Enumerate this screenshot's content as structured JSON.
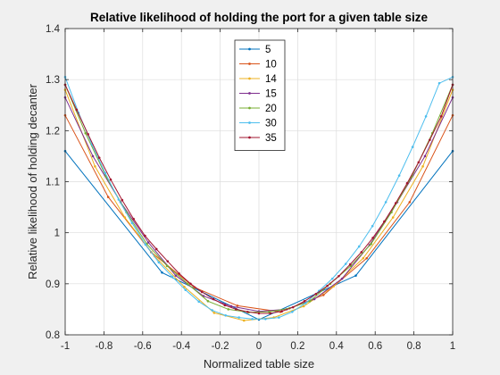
{
  "chart_data": {
    "type": "line",
    "title": "Relative likelihood of holding the port for a given table size",
    "xlabel": "Normalized table size",
    "ylabel": "Relative likelihood of holding decanter",
    "xlim": [
      -1,
      1
    ],
    "ylim": [
      0.8,
      1.4
    ],
    "xticks": [
      -1,
      -0.8,
      -0.6,
      -0.4,
      -0.2,
      0,
      0.2,
      0.4,
      0.6,
      0.8,
      1
    ],
    "xtick_labels": [
      "-1",
      "-0.8",
      "-0.6",
      "-0.4",
      "-0.2",
      "0",
      "0.2",
      "0.4",
      "0.6",
      "0.8",
      "1"
    ],
    "yticks": [
      0.8,
      0.9,
      1.0,
      1.1,
      1.2,
      1.3,
      1.4
    ],
    "ytick_labels": [
      "0.8",
      "0.9",
      "1",
      "1.1",
      "1.2",
      "1.3",
      "1.4"
    ],
    "grid": true,
    "legend_position": "top-center",
    "series": [
      {
        "name": "5",
        "color": "#0072BD",
        "x": [
          -1,
          -0.5,
          0,
          0.5,
          1
        ],
        "y": [
          1.16,
          0.922,
          0.83,
          0.916,
          1.16
        ]
      },
      {
        "name": "10",
        "color": "#D95319",
        "x": [
          -1,
          -0.778,
          -0.556,
          -0.333,
          -0.111,
          0.111,
          0.333,
          0.556,
          0.778,
          1
        ],
        "y": [
          1.23,
          1.07,
          0.962,
          0.893,
          0.857,
          0.845,
          0.878,
          0.95,
          1.06,
          1.23
        ]
      },
      {
        "name": "14",
        "color": "#EDB120",
        "x": [
          -1,
          -0.846,
          -0.692,
          -0.538,
          -0.385,
          -0.231,
          -0.077,
          0.077,
          0.231,
          0.385,
          0.538,
          0.692,
          0.846,
          1
        ],
        "y": [
          1.28,
          1.13,
          1.03,
          0.954,
          0.894,
          0.843,
          0.828,
          0.834,
          0.856,
          0.895,
          0.95,
          1.03,
          1.13,
          1.28
        ]
      },
      {
        "name": "15",
        "color": "#7E2F8E",
        "x": [
          -1,
          -0.857,
          -0.714,
          -0.571,
          -0.429,
          -0.286,
          -0.143,
          0,
          0.143,
          0.286,
          0.429,
          0.571,
          0.714,
          0.857,
          1
        ],
        "y": [
          1.265,
          1.15,
          1.06,
          0.981,
          0.916,
          0.876,
          0.856,
          0.846,
          0.85,
          0.87,
          0.91,
          0.976,
          1.06,
          1.15,
          1.265
        ]
      },
      {
        "name": "20",
        "color": "#77AC30",
        "x": [
          -1,
          -0.895,
          -0.789,
          -0.684,
          -0.579,
          -0.474,
          -0.368,
          -0.263,
          -0.158,
          -0.053,
          0.053,
          0.158,
          0.263,
          0.368,
          0.474,
          0.579,
          0.684,
          0.789,
          0.895,
          1
        ],
        "y": [
          1.29,
          1.195,
          1.11,
          1.04,
          0.978,
          0.935,
          0.9,
          0.866,
          0.85,
          0.844,
          0.845,
          0.852,
          0.866,
          0.9,
          0.935,
          0.978,
          1.04,
          1.11,
          1.195,
          1.29
        ]
      },
      {
        "name": "30",
        "color": "#4DBEEE",
        "x": [
          -1,
          -0.931,
          -0.862,
          -0.793,
          -0.724,
          -0.655,
          -0.586,
          -0.517,
          -0.448,
          -0.379,
          -0.31,
          -0.241,
          -0.172,
          -0.103,
          -0.034,
          0.034,
          0.103,
          0.172,
          0.241,
          0.31,
          0.379,
          0.448,
          0.517,
          0.586,
          0.655,
          0.724,
          0.793,
          0.862,
          0.931,
          1
        ],
        "y": [
          1.305,
          1.235,
          1.173,
          1.117,
          1.065,
          1.019,
          0.977,
          0.942,
          0.914,
          0.888,
          0.865,
          0.848,
          0.838,
          0.834,
          0.831,
          0.831,
          0.834,
          0.845,
          0.862,
          0.886,
          0.91,
          0.939,
          0.973,
          1.013,
          1.06,
          1.112,
          1.168,
          1.228,
          1.293,
          1.305
        ]
      },
      {
        "name": "35",
        "color": "#A2142F",
        "x": [
          -1,
          -0.941,
          -0.882,
          -0.824,
          -0.765,
          -0.706,
          -0.647,
          -0.588,
          -0.529,
          -0.471,
          -0.412,
          -0.353,
          -0.294,
          -0.235,
          -0.176,
          -0.118,
          -0.059,
          0,
          0.059,
          0.118,
          0.176,
          0.235,
          0.294,
          0.353,
          0.412,
          0.471,
          0.529,
          0.588,
          0.647,
          0.706,
          0.765,
          0.824,
          0.882,
          0.941,
          1
        ],
        "y": [
          1.29,
          1.241,
          1.193,
          1.147,
          1.104,
          1.064,
          1.027,
          0.994,
          0.968,
          0.944,
          0.92,
          0.9,
          0.884,
          0.87,
          0.858,
          0.85,
          0.845,
          0.842,
          0.842,
          0.846,
          0.854,
          0.866,
          0.88,
          0.896,
          0.915,
          0.938,
          0.962,
          0.99,
          1.022,
          1.058,
          1.097,
          1.138,
          1.182,
          1.228,
          1.29
        ]
      }
    ]
  }
}
